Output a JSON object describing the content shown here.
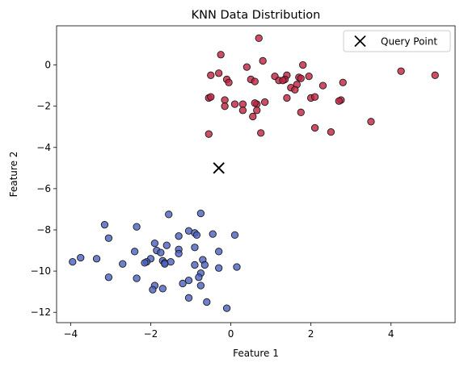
{
  "chart_data": {
    "type": "scatter",
    "title": "KNN Data Distribution",
    "xlabel": "Feature 1",
    "ylabel": "Feature 2",
    "xlim": [
      -4.35,
      5.6
    ],
    "ylim": [
      -12.5,
      1.9
    ],
    "x_ticks": [
      -4,
      -2,
      0,
      2,
      4
    ],
    "y_ticks": [
      0,
      -2,
      -4,
      -6,
      -8,
      -10,
      -12
    ],
    "grid": false,
    "legend": {
      "placement": "top-right",
      "entries": [
        "Query Point"
      ]
    },
    "colors": {
      "class_red": "#c0203e",
      "class_blue": "#4a5fbf",
      "query": "#000000"
    },
    "series": [
      {
        "color": "#c0203e",
        "points": [
          [
            0.7,
            1.3
          ],
          [
            -0.25,
            0.5
          ],
          [
            0.8,
            0.2
          ],
          [
            0.4,
            -0.1
          ],
          [
            1.8,
            0
          ],
          [
            -0.3,
            -0.4
          ],
          [
            -0.5,
            -0.5
          ],
          [
            -0.1,
            -0.7
          ],
          [
            -0.05,
            -0.85
          ],
          [
            0.5,
            -0.7
          ],
          [
            0.6,
            -0.8
          ],
          [
            1.1,
            -0.55
          ],
          [
            1.2,
            -0.75
          ],
          [
            1.4,
            -0.5
          ],
          [
            1.35,
            -0.7
          ],
          [
            1.3,
            -0.75
          ],
          [
            1.7,
            -0.6
          ],
          [
            1.75,
            -0.65
          ],
          [
            1.95,
            -0.55
          ],
          [
            2.3,
            -1.0
          ],
          [
            2.8,
            -0.85
          ],
          [
            1.65,
            -0.95
          ],
          [
            1.5,
            -1.1
          ],
          [
            1.6,
            -1.2
          ],
          [
            4.25,
            -0.3
          ],
          [
            5.1,
            -0.5
          ],
          [
            1.4,
            -1.6
          ],
          [
            2.0,
            -1.6
          ],
          [
            2.1,
            -1.55
          ],
          [
            2.75,
            -1.7
          ],
          [
            2.7,
            -1.75
          ],
          [
            0.85,
            -1.8
          ],
          [
            0.65,
            -1.9
          ],
          [
            -0.55,
            -1.6
          ],
          [
            -0.5,
            -1.55
          ],
          [
            -0.15,
            -1.7
          ],
          [
            -0.15,
            -2.0
          ],
          [
            0.1,
            -1.9
          ],
          [
            0.3,
            -1.9
          ],
          [
            0.6,
            -1.85
          ],
          [
            0.3,
            -2.2
          ],
          [
            0.65,
            -2.2
          ],
          [
            0.55,
            -2.5
          ],
          [
            1.75,
            -2.3
          ],
          [
            2.1,
            -3.05
          ],
          [
            2.5,
            -3.25
          ],
          [
            0.75,
            -3.3
          ],
          [
            -0.55,
            -3.35
          ],
          [
            3.5,
            -2.75
          ]
        ]
      },
      {
        "color": "#4a5fbf",
        "points": [
          [
            -0.75,
            -7.2
          ],
          [
            -1.55,
            -7.25
          ],
          [
            -3.15,
            -7.75
          ],
          [
            -2.35,
            -7.85
          ],
          [
            -1.05,
            -8.05
          ],
          [
            -0.9,
            -8.15
          ],
          [
            -0.85,
            -8.25
          ],
          [
            -0.45,
            -8.2
          ],
          [
            0.1,
            -8.25
          ],
          [
            -3.05,
            -8.4
          ],
          [
            -1.3,
            -8.3
          ],
          [
            -1.9,
            -8.65
          ],
          [
            -1.6,
            -8.75
          ],
          [
            -2.4,
            -9.05
          ],
          [
            -1.85,
            -9.0
          ],
          [
            -1.75,
            -9.1
          ],
          [
            -1.3,
            -8.95
          ],
          [
            -0.9,
            -8.85
          ],
          [
            -0.3,
            -9.05
          ],
          [
            -2.0,
            -9.4
          ],
          [
            -2.1,
            -9.55
          ],
          [
            -1.7,
            -9.5
          ],
          [
            -1.65,
            -9.6
          ],
          [
            -1.5,
            -9.55
          ],
          [
            -1.3,
            -9.15
          ],
          [
            -0.7,
            -9.45
          ],
          [
            -0.65,
            -9.7
          ],
          [
            -3.75,
            -9.35
          ],
          [
            -3.35,
            -9.4
          ],
          [
            -3.95,
            -9.55
          ],
          [
            -2.7,
            -9.65
          ],
          [
            -2.15,
            -9.6
          ],
          [
            -1.65,
            -9.65
          ],
          [
            -0.9,
            -9.7
          ],
          [
            -0.75,
            -10.1
          ],
          [
            -0.3,
            -9.85
          ],
          [
            0.15,
            -9.8
          ],
          [
            -3.05,
            -10.3
          ],
          [
            -2.35,
            -10.35
          ],
          [
            -1.05,
            -10.45
          ],
          [
            -1.2,
            -10.6
          ],
          [
            -0.8,
            -10.3
          ],
          [
            -0.75,
            -10.7
          ],
          [
            -1.9,
            -10.7
          ],
          [
            -1.95,
            -10.9
          ],
          [
            -1.7,
            -10.85
          ],
          [
            -1.05,
            -11.3
          ],
          [
            -0.6,
            -11.5
          ],
          [
            -0.1,
            -11.8
          ]
        ]
      }
    ],
    "query_point": {
      "x": -0.3,
      "y": -5.0,
      "name": "Query Point"
    }
  }
}
